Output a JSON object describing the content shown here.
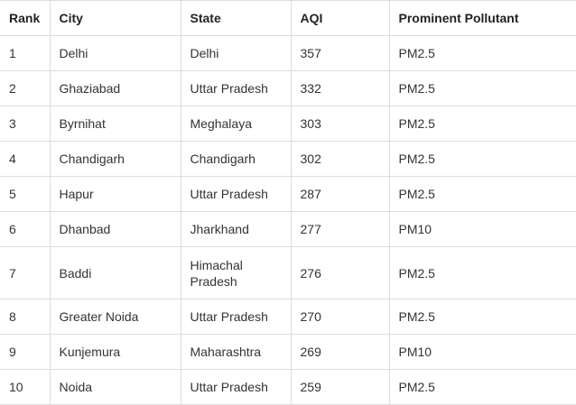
{
  "table": {
    "headers": [
      "Rank",
      "City",
      "State",
      "AQI",
      "Prominent Pollutant"
    ],
    "rows": [
      [
        "1",
        "Delhi",
        "Delhi",
        "357",
        "PM2.5"
      ],
      [
        "2",
        "Ghaziabad",
        "Uttar Pradesh",
        "332",
        "PM2.5"
      ],
      [
        "3",
        "Byrnihat",
        "Meghalaya",
        "303",
        "PM2.5"
      ],
      [
        "4",
        "Chandigarh",
        "Chandigarh",
        "302",
        "PM2.5"
      ],
      [
        "5",
        "Hapur",
        "Uttar Pradesh",
        "287",
        "PM2.5"
      ],
      [
        "6",
        "Dhanbad",
        "Jharkhand",
        "277",
        "PM10"
      ],
      [
        "7",
        "Baddi",
        "Himachal Pradesh",
        "276",
        "PM2.5"
      ],
      [
        "8",
        "Greater Noida",
        "Uttar Pradesh",
        "270",
        "PM2.5"
      ],
      [
        "9",
        "Kunjemura",
        "Maharashtra",
        "269",
        "PM10"
      ],
      [
        "10",
        "Noida",
        "Uttar Pradesh",
        "259",
        "PM2.5"
      ]
    ]
  }
}
